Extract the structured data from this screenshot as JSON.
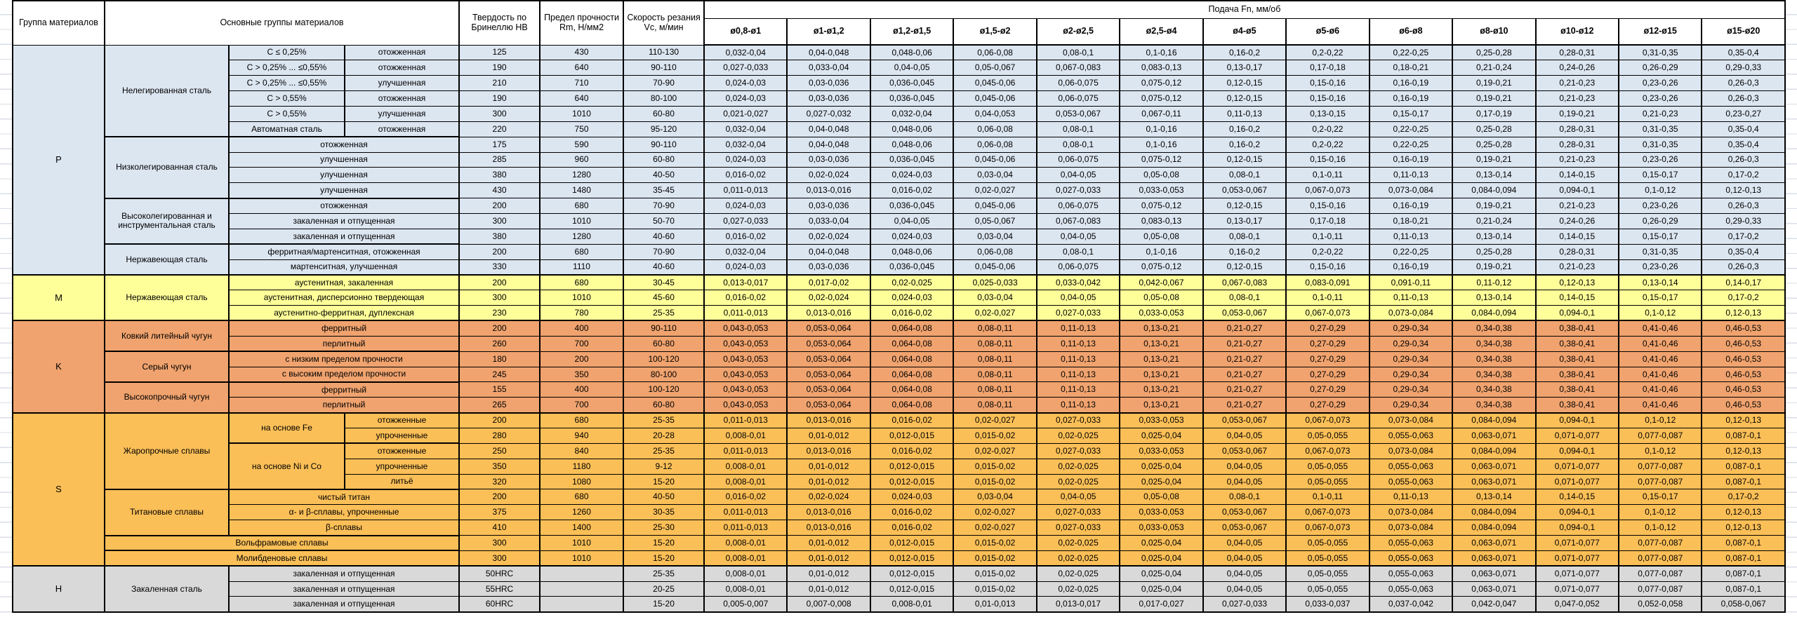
{
  "header": {
    "group": "Группа материалов",
    "main": "Основные группы материалов",
    "hb": "Твердость по Бринеллю HB",
    "rm": "Предел прочности Rm, Н/мм2",
    "vc": "Скорость резания Vc, м/мин",
    "feed_title": "Подача Fn, мм/об",
    "feed_cols": [
      "ø0,8-ø1",
      "ø1-ø1,2",
      "ø1,2-ø1,5",
      "ø1,5-ø2",
      "ø2-ø2,5",
      "ø2,5-ø4",
      "ø4-ø5",
      "ø5-ø6",
      "ø6-ø8",
      "ø8-ø10",
      "ø10-ø12",
      "ø12-ø15",
      "ø15-ø20"
    ]
  },
  "colors": {
    "P": "#DCE6F1",
    "M": "#FFFF99",
    "K": "#F0A36E",
    "S": "#FBBF57",
    "H": "#D9D9D9"
  },
  "feeds": {
    "FA": [
      "0,032-0,04",
      "0,04-0,048",
      "0,048-0,06",
      "0,06-0,08",
      "0,08-0,1",
      "0,1-0,16",
      "0,16-0,2",
      "0,2-0,22",
      "0,22-0,25",
      "0,25-0,28",
      "0,28-0,31",
      "0,31-0,35",
      "0,35-0,4"
    ],
    "FB": [
      "0,027-0,033",
      "0,033-0,04",
      "0,04-0,05",
      "0,05-0,067",
      "0,067-0,083",
      "0,083-0,13",
      "0,13-0,17",
      "0,17-0,18",
      "0,18-0,21",
      "0,21-0,24",
      "0,24-0,26",
      "0,26-0,29",
      "0,29-0,33"
    ],
    "FC": [
      "0,024-0,03",
      "0,03-0,036",
      "0,036-0,045",
      "0,045-0,06",
      "0,06-0,075",
      "0,075-0,12",
      "0,12-0,15",
      "0,15-0,16",
      "0,16-0,19",
      "0,19-0,21",
      "0,21-0,23",
      "0,23-0,26",
      "0,26-0,3"
    ],
    "FD": [
      "0,021-0,027",
      "0,027-0,032",
      "0,032-0,04",
      "0,04-0,053",
      "0,053-0,067",
      "0,067-0,11",
      "0,11-0,13",
      "0,13-0,15",
      "0,15-0,17",
      "0,17-0,19",
      "0,19-0,21",
      "0,21-0,23",
      "0,23-0,27"
    ],
    "FE": [
      "0,016-0,02",
      "0,02-0,024",
      "0,024-0,03",
      "0,03-0,04",
      "0,04-0,05",
      "0,05-0,08",
      "0,08-0,1",
      "0,1-0,11",
      "0,11-0,13",
      "0,13-0,14",
      "0,14-0,15",
      "0,15-0,17",
      "0,17-0,2"
    ],
    "FF": [
      "0,011-0,013",
      "0,013-0,016",
      "0,016-0,02",
      "0,02-0,027",
      "0,027-0,033",
      "0,033-0,053",
      "0,053-0,067",
      "0,067-0,073",
      "0,073-0,084",
      "0,084-0,094",
      "0,094-0,1",
      "0,1-0,12",
      "0,12-0,13"
    ],
    "FG": [
      "0,013-0,017",
      "0,017-0,02",
      "0,02-0,025",
      "0,025-0,033",
      "0,033-0,042",
      "0,042-0,067",
      "0,067-0,083",
      "0,083-0,091",
      "0,091-0,11",
      "0,11-0,12",
      "0,12-0,13",
      "0,13-0,14",
      "0,14-0,17"
    ],
    "FH": [
      "0,043-0,053",
      "0,053-0,064",
      "0,064-0,08",
      "0,08-0,11",
      "0,11-0,13",
      "0,13-0,21",
      "0,21-0,27",
      "0,27-0,29",
      "0,29-0,34",
      "0,34-0,38",
      "0,38-0,41",
      "0,41-0,46",
      "0,46-0,53"
    ],
    "FI": [
      "0,008-0,01",
      "0,01-0,012",
      "0,012-0,015",
      "0,015-0,02",
      "0,02-0,025",
      "0,025-0,04",
      "0,04-0,05",
      "0,05-0,055",
      "0,055-0,063",
      "0,063-0,071",
      "0,071-0,077",
      "0,077-0,087",
      "0,087-0,1"
    ],
    "FJ": [
      "0,005-0,007",
      "0,007-0,008",
      "0,008-0,01",
      "0,01-0,013",
      "0,013-0,017",
      "0,017-0,027",
      "0,027-0,033",
      "0,033-0,037",
      "0,037-0,042",
      "0,042-0,047",
      "0,047-0,052",
      "0,052-0,058",
      "0,058-0,067"
    ]
  },
  "rows": [
    {
      "g": "P",
      "lead": [
        {
          "t": "P",
          "rs": 15,
          "nm": "group-label"
        },
        {
          "t": "Нелегированная сталь",
          "rs": 6
        },
        {
          "t": "C ≤ 0,25%"
        },
        {
          "t": "отожженная"
        }
      ],
      "hb": "125",
      "rm": "430",
      "vc": "110-130",
      "f": "FA"
    },
    {
      "g": "P",
      "lead": [
        {
          "t": "C > 0,25% ... ≤0,55%"
        },
        {
          "t": "отожженная"
        }
      ],
      "hb": "190",
      "rm": "640",
      "vc": "90-110",
      "f": "FB"
    },
    {
      "g": "P",
      "lead": [
        {
          "t": "C > 0,25% ... ≤0,55%"
        },
        {
          "t": "улучшенная"
        }
      ],
      "hb": "210",
      "rm": "710",
      "vc": "70-90",
      "f": "FC"
    },
    {
      "g": "P",
      "lead": [
        {
          "t": "C > 0,55%"
        },
        {
          "t": "отожженная"
        }
      ],
      "hb": "190",
      "rm": "640",
      "vc": "80-100",
      "f": "FC"
    },
    {
      "g": "P",
      "lead": [
        {
          "t": "C > 0,55%"
        },
        {
          "t": "улучшенная"
        }
      ],
      "hb": "300",
      "rm": "1010",
      "vc": "60-80",
      "f": "FD"
    },
    {
      "g": "P",
      "lead": [
        {
          "t": "Автоматная сталь"
        },
        {
          "t": "отожженная"
        }
      ],
      "hb": "220",
      "rm": "750",
      "vc": "95-120",
      "f": "FA"
    },
    {
      "g": "P",
      "lead": [
        {
          "t": "Низколегированная сталь",
          "rs": 4,
          "bt": true
        },
        {
          "t": "отожженная",
          "cs": 2,
          "bt": true
        }
      ],
      "hb": "175",
      "rm": "590",
      "vc": "90-110",
      "f": "FA"
    },
    {
      "g": "P",
      "lead": [
        {
          "t": "улучшенная",
          "cs": 2
        }
      ],
      "hb": "285",
      "rm": "960",
      "vc": "60-80",
      "f": "FC"
    },
    {
      "g": "P",
      "lead": [
        {
          "t": "улучшенная",
          "cs": 2
        }
      ],
      "hb": "380",
      "rm": "1280",
      "vc": "40-50",
      "f": "FE"
    },
    {
      "g": "P",
      "lead": [
        {
          "t": "улучшенная",
          "cs": 2
        }
      ],
      "hb": "430",
      "rm": "1480",
      "vc": "35-45",
      "f": "FF"
    },
    {
      "g": "P",
      "lead": [
        {
          "t": "Высоколегированная и инструментальная сталь",
          "rs": 3,
          "bt": true
        },
        {
          "t": "отожженная",
          "cs": 2,
          "bt": true
        }
      ],
      "hb": "200",
      "rm": "680",
      "vc": "70-90",
      "f": "FC"
    },
    {
      "g": "P",
      "lead": [
        {
          "t": "закаленная и отпущенная",
          "cs": 2
        }
      ],
      "hb": "300",
      "rm": "1010",
      "vc": "50-70",
      "f": "FB"
    },
    {
      "g": "P",
      "lead": [
        {
          "t": "закаленная и отпущенная",
          "cs": 2
        }
      ],
      "hb": "380",
      "rm": "1280",
      "vc": "40-60",
      "f": "FE"
    },
    {
      "g": "P",
      "lead": [
        {
          "t": "Нержавеющая сталь",
          "rs": 2,
          "bt": true
        },
        {
          "t": "ферритная/мартенситная, отожженная",
          "cs": 2,
          "bt": true
        }
      ],
      "hb": "200",
      "rm": "680",
      "vc": "70-90",
      "f": "FA"
    },
    {
      "g": "P",
      "lead": [
        {
          "t": "мартенситная, улучшенная",
          "cs": 2
        }
      ],
      "hb": "330",
      "rm": "1110",
      "vc": "40-60",
      "f": "FC"
    },
    {
      "g": "M",
      "bt": true,
      "lead": [
        {
          "t": "M",
          "rs": 3,
          "nm": "group-label"
        },
        {
          "t": "Нержавеющая сталь",
          "rs": 3
        },
        {
          "t": "аустенитная, закаленная",
          "cs": 2
        }
      ],
      "hb": "200",
      "rm": "680",
      "vc": "30-45",
      "f": "FG"
    },
    {
      "g": "M",
      "lead": [
        {
          "t": "аустенитная, дисперсионно твердеющая",
          "cs": 2
        }
      ],
      "hb": "300",
      "rm": "1010",
      "vc": "45-60",
      "f": "FE"
    },
    {
      "g": "M",
      "lead": [
        {
          "t": "аустенитно-ферритная, дуплексная",
          "cs": 2
        }
      ],
      "hb": "230",
      "rm": "780",
      "vc": "25-35",
      "f": "FF"
    },
    {
      "g": "K",
      "bt": true,
      "lead": [
        {
          "t": "K",
          "rs": 6,
          "nm": "group-label"
        },
        {
          "t": "Ковкий литейный чугун",
          "rs": 2
        },
        {
          "t": "ферритный",
          "cs": 2
        }
      ],
      "hb": "200",
      "rm": "400",
      "vc": "90-110",
      "f": "FH"
    },
    {
      "g": "K",
      "lead": [
        {
          "t": "перлитный",
          "cs": 2
        }
      ],
      "hb": "260",
      "rm": "700",
      "vc": "60-80",
      "f": "FH"
    },
    {
      "g": "K",
      "lead": [
        {
          "t": "Серый чугун",
          "rs": 2,
          "bt": true
        },
        {
          "t": "с низким пределом прочности",
          "cs": 2,
          "bt": true
        }
      ],
      "hb": "180",
      "rm": "200",
      "vc": "100-120",
      "f": "FH"
    },
    {
      "g": "K",
      "lead": [
        {
          "t": "с высоким пределом прочности",
          "cs": 2
        }
      ],
      "hb": "245",
      "rm": "350",
      "vc": "80-100",
      "f": "FH"
    },
    {
      "g": "K",
      "lead": [
        {
          "t": "Высокопрочный чугун",
          "rs": 2,
          "bt": true
        },
        {
          "t": "ферритный",
          "cs": 2,
          "bt": true
        }
      ],
      "hb": "155",
      "rm": "400",
      "vc": "100-120",
      "f": "FH"
    },
    {
      "g": "K",
      "lead": [
        {
          "t": "перлитный",
          "cs": 2
        }
      ],
      "hb": "265",
      "rm": "700",
      "vc": "60-80",
      "f": "FH"
    },
    {
      "g": "S",
      "bt": true,
      "lead": [
        {
          "t": "S",
          "rs": 10,
          "nm": "group-label"
        },
        {
          "t": "Жаропрочные сплавы",
          "rs": 5
        },
        {
          "t": "на основе Fe",
          "rs": 2
        },
        {
          "t": "отожженные"
        }
      ],
      "hb": "200",
      "rm": "680",
      "vc": "25-35",
      "f": "FF"
    },
    {
      "g": "S",
      "lead": [
        {
          "t": "упрочненные"
        }
      ],
      "hb": "280",
      "rm": "940",
      "vc": "20-28",
      "f": "FI"
    },
    {
      "g": "S",
      "lead": [
        {
          "t": "на основе Ni и Co",
          "rs": 3,
          "bt": true
        },
        {
          "t": "отожженные",
          "bt": true
        }
      ],
      "hb": "250",
      "rm": "840",
      "vc": "25-35",
      "f": "FF"
    },
    {
      "g": "S",
      "lead": [
        {
          "t": "упрочненные"
        }
      ],
      "hb": "350",
      "rm": "1180",
      "vc": "9-12",
      "f": "FI"
    },
    {
      "g": "S",
      "lead": [
        {
          "t": "литьё"
        }
      ],
      "hb": "320",
      "rm": "1080",
      "vc": "15-20",
      "f": "FI"
    },
    {
      "g": "S",
      "lead": [
        {
          "t": "Титановые сплавы",
          "rs": 3,
          "bt": true
        },
        {
          "t": "чистый титан",
          "cs": 2,
          "bt": true
        }
      ],
      "hb": "200",
      "rm": "680",
      "vc": "40-50",
      "f": "FE"
    },
    {
      "g": "S",
      "lead": [
        {
          "t": "α- и β-сплавы, упрочненные",
          "cs": 2
        }
      ],
      "hb": "375",
      "rm": "1260",
      "vc": "30-35",
      "f": "FF"
    },
    {
      "g": "S",
      "lead": [
        {
          "t": "β-сплавы",
          "cs": 2
        }
      ],
      "hb": "410",
      "rm": "1400",
      "vc": "25-30",
      "f": "FF"
    },
    {
      "g": "S",
      "lead": [
        {
          "t": "Вольфрамовые сплавы",
          "cs": 3,
          "bt": true
        }
      ],
      "hb": "300",
      "rm": "1010",
      "vc": "15-20",
      "f": "FI"
    },
    {
      "g": "S",
      "lead": [
        {
          "t": "Молибденовые сплавы",
          "cs": 3,
          "bt": true
        }
      ],
      "hb": "300",
      "rm": "1010",
      "vc": "15-20",
      "f": "FI"
    },
    {
      "g": "H",
      "bt": true,
      "lead": [
        {
          "t": "H",
          "rs": 3,
          "nm": "group-label"
        },
        {
          "t": "Закаленная сталь",
          "rs": 3
        },
        {
          "t": "закаленная и отпущенная",
          "cs": 2
        }
      ],
      "hb": "50HRC",
      "rm": "",
      "vc": "25-35",
      "f": "FI"
    },
    {
      "g": "H",
      "lead": [
        {
          "t": "закаленная и отпущенная",
          "cs": 2
        }
      ],
      "hb": "55HRC",
      "rm": "",
      "vc": "20-25",
      "f": "FI"
    },
    {
      "g": "H",
      "lead": [
        {
          "t": "закаленная и отпущенная",
          "cs": 2
        }
      ],
      "hb": "60HRC",
      "rm": "",
      "vc": "15-20",
      "f": "FJ"
    }
  ]
}
